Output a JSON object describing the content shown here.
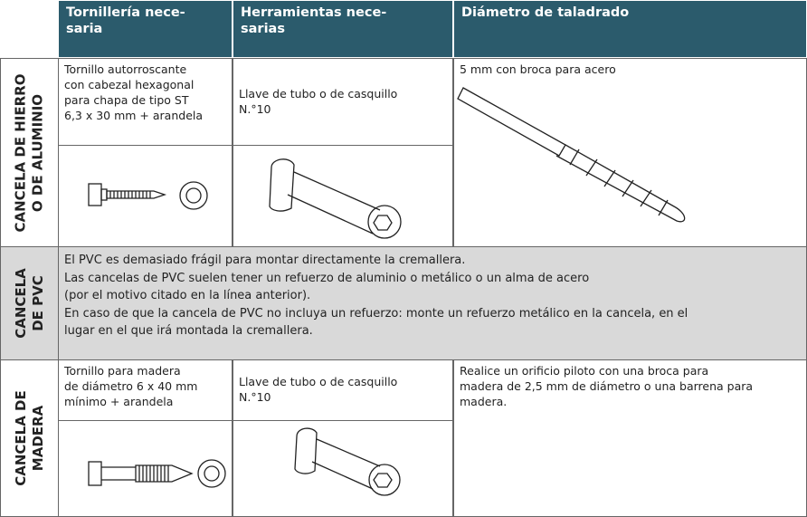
{
  "header": {
    "columns": [
      "Tornillería nece-\nsaria",
      "Herramientas nece-\nsarias",
      "Diámetro de taladrado"
    ]
  },
  "rows": [
    {
      "label": "CANCELA DE HIERRO\nO DE ALUMINIO",
      "screws": "Tornillo autorroscante\ncon cabezal hexagonal\npara chapa de tipo ST\n6,3 x 30 mm + arandela",
      "tools": "Llave de tubo o de casquillo\nN.°10",
      "drilling": "5 mm con broca para acero"
    },
    {
      "label": "CANCELA\nDE PVC",
      "note": "El PVC es demasiado frágil para montar directamente la cremallera.\nLas cancelas de PVC suelen tener un refuerzo de aluminio o metálico o un alma de acero\n(por el motivo citado en la línea anterior).\nEn caso de que la cancela de PVC no incluya un refuerzo: monte un refuerzo metálico en la cancela, en el\nlugar en el que irá montada la cremallera."
    },
    {
      "label": "CANCELA DE\nMADERA",
      "screws": "Tornillo para madera\nde diámetro 6 x 40 mm\nmínimo + arandela",
      "tools": "Llave de tubo o de casquillo\nN.°10",
      "drilling": "Realice un orificio piloto con una broca para\nmadera de 2,5 mm de diámetro o una barrena para\nmadera."
    }
  ]
}
